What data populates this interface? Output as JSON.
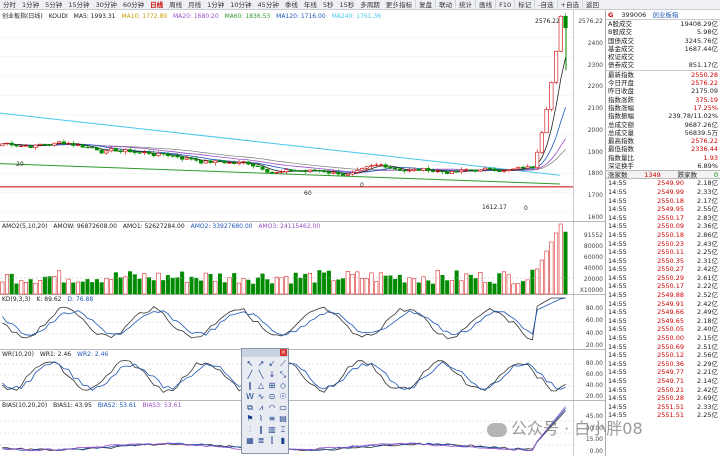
{
  "toolbar": {
    "periods": [
      "分时",
      "1分钟",
      "5分钟",
      "15分钟",
      "30分钟",
      "60分钟",
      "日线",
      "周线",
      "月线",
      "1分钟",
      "10分钟",
      "45分钟",
      "季线",
      "年线",
      "5秒",
      "15秒",
      "多周期",
      "更多"
    ],
    "active_index": 6,
    "right_tabs": [
      "指标",
      "复盘",
      "联动",
      "统计",
      "画线",
      "F10",
      "标记",
      "-自选",
      "+自选",
      "返回"
    ]
  },
  "main_panel": {
    "header": {
      "name": "创业板指(日线)",
      "indicator": "KOUDI",
      "ma5": "MA5: 1993.31",
      "ma10": "MA10: 1772.89",
      "ma20": "MA20: 1680.20",
      "ma60": "MA60: 1836.53",
      "ma120": "MA120: 1716.00",
      "ma240": "MA240: 1761.36"
    },
    "axis": [
      "2576.22",
      "2400",
      "2300",
      "2200",
      "2100",
      "2000",
      "1900",
      "1800",
      "1700",
      "1600"
    ],
    "annotations": {
      "peak": "2576.22",
      "low_mark": "1612.17",
      "left_mark": "20",
      "mid_mark": "60",
      "small_mark_a": "0",
      "small_mark_b": "0"
    }
  },
  "amo_panel": {
    "header": {
      "name": "AMO2(5,10,20)",
      "amow": "AMOW: 96872608.00",
      "amo1": "AMO1: 52627284.00",
      "amo2": "AMO2: 33927680.00",
      "amo3": "AMO3: 24115462.00"
    },
    "axis": [
      "91552",
      "80000",
      "60000",
      "40000",
      "20000",
      "X10000"
    ]
  },
  "kd_panel": {
    "header": {
      "name": "KD(9,3,3)",
      "k": "K: 89.62",
      "d": "D: 76.88"
    },
    "axis": [
      "80.00",
      "60.00",
      "40.00",
      "20.00"
    ]
  },
  "wr_panel": {
    "header": {
      "name": "WR(10,20)",
      "wr1": "WR1: 2.46",
      "wr2": "WR2: 2.46"
    },
    "axis": [
      "80.00",
      "60.00",
      "40.00",
      "20.00"
    ]
  },
  "bias_panel": {
    "header": {
      "name": "BIAS(10,20,20)",
      "bias1": "BIAS1: 43.95",
      "bias2": "BIAS2: 53.61",
      "bias3": "BIAS3: 53.61"
    },
    "axis": [
      "45.00",
      "30.00",
      "15.00",
      "0.00"
    ]
  },
  "palette": {
    "tools": [
      "↖",
      "↗",
      "↙",
      "⟋",
      "╱",
      "╲",
      "↓",
      "⤡",
      "∥",
      "△",
      "⊞",
      "◇",
      "W",
      "∿",
      "⊙",
      "☉",
      "⧉",
      "⩘",
      "◠",
      "▭",
      "⚑",
      "⌇",
      "≡",
      "▤",
      "⫶",
      "‖",
      "▥",
      "⌶",
      "▦",
      "≣",
      "⫿",
      "▮"
    ]
  },
  "watermark": {
    "text": "公众号 · 白小胖08"
  },
  "side": {
    "flag": "G",
    "code": "399006",
    "name": "创业板指",
    "stats": [
      {
        "k": "A股成交",
        "v": "19408.29亿",
        "c": ""
      },
      {
        "k": "B股成交",
        "v": "5.98亿",
        "c": ""
      },
      {
        "k": "国债成交",
        "v": "3245.76亿",
        "c": ""
      },
      {
        "k": "基金成交",
        "v": "1687.44亿",
        "c": ""
      },
      {
        "k": "权证成交",
        "v": "",
        "c": ""
      },
      {
        "k": "债券成交",
        "v": "851.17亿",
        "c": ""
      }
    ],
    "quotes": [
      {
        "k": "最新指数",
        "v": "2550.28",
        "c": "red"
      },
      {
        "k": "今日开盘",
        "v": "2576.22",
        "c": "red"
      },
      {
        "k": "昨日收盘",
        "v": "2175.09",
        "c": ""
      },
      {
        "k": "指数涨跌",
        "v": "375.19",
        "c": "red"
      },
      {
        "k": "指数涨幅",
        "v": "17.25%",
        "c": "red"
      },
      {
        "k": "指数振幅",
        "v": "239.78/11.02%",
        "c": ""
      },
      {
        "k": "总成交额",
        "v": "9687.26亿",
        "c": ""
      },
      {
        "k": "总成交量",
        "v": "56839.5万",
        "c": ""
      },
      {
        "k": "最高指数",
        "v": "2576.22",
        "c": "red"
      },
      {
        "k": "最低指数",
        "v": "2336.44",
        "c": "red"
      },
      {
        "k": "指数量比",
        "v": "1.93",
        "c": "red"
      },
      {
        "k": "深证换手",
        "v": "6.89%",
        "c": ""
      }
    ],
    "compare": {
      "up_label": "涨家数",
      "up": "1349",
      "down_label": "跌家数",
      "down": "0"
    },
    "ticks": [
      {
        "t": "14:55",
        "p": "2549.90",
        "a": "2.18亿"
      },
      {
        "t": "14:55",
        "p": "2549.99",
        "a": "2.33亿"
      },
      {
        "t": "14:55",
        "p": "2550.18",
        "a": "2.17亿"
      },
      {
        "t": "14:55",
        "p": "2549.95",
        "a": "2.55亿"
      },
      {
        "t": "14:55",
        "p": "2550.17",
        "a": "2.83亿"
      },
      {
        "t": "14:55",
        "p": "2550.09",
        "a": "2.36亿"
      },
      {
        "t": "14:55",
        "p": "2550.18",
        "a": "2.86亿"
      },
      {
        "t": "14:55",
        "p": "2550.23",
        "a": "2.43亿"
      },
      {
        "t": "14:55",
        "p": "2550.11",
        "a": "2.25亿"
      },
      {
        "t": "14:55",
        "p": "2550.35",
        "a": "2.31亿"
      },
      {
        "t": "14:55",
        "p": "2550.27",
        "a": "2.42亿"
      },
      {
        "t": "14:55",
        "p": "2550.29",
        "a": "2.61亿"
      },
      {
        "t": "14:55",
        "p": "2550.17",
        "a": "2.22亿"
      },
      {
        "t": "14:55",
        "p": "2549.88",
        "a": "2.52亿"
      },
      {
        "t": "14:55",
        "p": "2549.91",
        "a": "2.42亿"
      },
      {
        "t": "14:55",
        "p": "2549.66",
        "a": "2.49亿"
      },
      {
        "t": "14:55",
        "p": "2549.65",
        "a": "2.18亿"
      },
      {
        "t": "14:55",
        "p": "2550.05",
        "a": "2.40亿"
      },
      {
        "t": "14:55",
        "p": "2550.00",
        "a": "2.15亿"
      },
      {
        "t": "14:55",
        "p": "2550.69",
        "a": "2.51亿"
      },
      {
        "t": "14:55",
        "p": "2550.12",
        "a": "2.56亿"
      },
      {
        "t": "14:55",
        "p": "2550.36",
        "a": "2.29亿"
      },
      {
        "t": "14:55",
        "p": "2549.77",
        "a": "2.21亿"
      },
      {
        "t": "14:55",
        "p": "2549.71",
        "a": "2.14亿"
      },
      {
        "t": "14:55",
        "p": "2550.21",
        "a": "2.42亿"
      },
      {
        "t": "14:55",
        "p": "2550.28",
        "a": "2.69亿"
      },
      {
        "t": "14:55",
        "p": "2551.51",
        "a": "2.33亿"
      },
      {
        "t": "14:55",
        "p": "2551.51",
        "a": "2.25亿"
      }
    ]
  },
  "colors": {
    "up": "#d00000",
    "down": "#008a00",
    "ma_white": "#222222",
    "ma_cyan": "#47c8e8",
    "ma_purple": "#9a4fc8",
    "ma_green": "#2e9a2e",
    "support": "#d00000"
  }
}
